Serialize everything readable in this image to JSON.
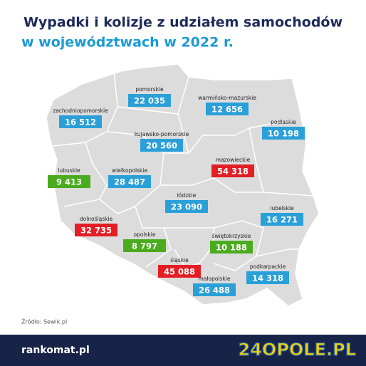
{
  "header": {
    "title_line1": "Wypadki i kolizje z udziałem samochodów",
    "title_line2": "w województwach w 2022 r."
  },
  "regions": [
    {
      "name": "pomorskie",
      "value": "22 035",
      "color": "#2a9fd8"
    },
    {
      "name": "warmińsko-mazurskie",
      "value": "12 656",
      "color": "#2a9fd8"
    },
    {
      "name": "zachodniopomorskie",
      "value": "16 512",
      "color": "#2a9fd8"
    },
    {
      "name": "podlaskie",
      "value": "10 198",
      "color": "#2a9fd8"
    },
    {
      "name": "kujawsko-pomorskie",
      "value": "20 560",
      "color": "#2a9fd8"
    },
    {
      "name": "mazowieckie",
      "value": "54 318",
      "color": "#e31e24"
    },
    {
      "name": "lubuskie",
      "value": "9 413",
      "color": "#4aab1e"
    },
    {
      "name": "wielkopolskie",
      "value": "28 487",
      "color": "#2a9fd8"
    },
    {
      "name": "łódzkie",
      "value": "23 090",
      "color": "#2a9fd8"
    },
    {
      "name": "lubelskie",
      "value": "16 271",
      "color": "#2a9fd8"
    },
    {
      "name": "dolnośląskie",
      "value": "32 735",
      "color": "#e31e24"
    },
    {
      "name": "opolskie",
      "value": "8 797",
      "color": "#4aab1e"
    },
    {
      "name": "świętokrzyskie",
      "value": "10 188",
      "color": "#4aab1e"
    },
    {
      "name": "śląskie",
      "value": "45 088",
      "color": "#e31e24"
    },
    {
      "name": "podkarpackie",
      "value": "14 318",
      "color": "#2a9fd8"
    },
    {
      "name": "małopolskie",
      "value": "26 488",
      "color": "#2a9fd8"
    }
  ],
  "footer": {
    "source": "Źródło: Sewik.pl",
    "brand": "rankomat.pl",
    "logo": "24OPOLE.PL"
  }
}
